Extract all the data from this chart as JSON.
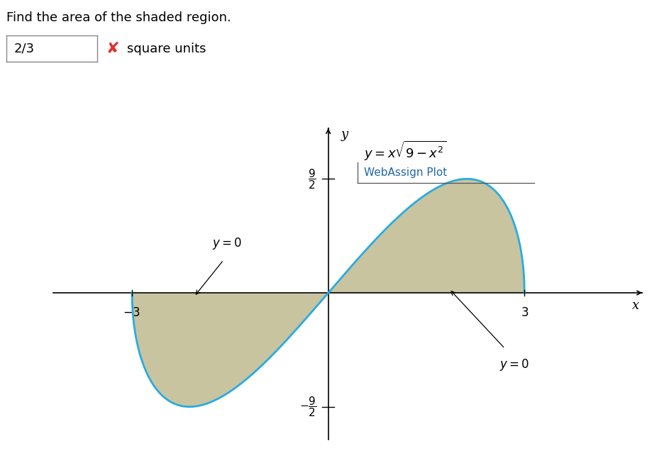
{
  "title_text": "Find the area of the shaded region.",
  "answer_text": "2/3",
  "square_units_text": "square units",
  "equation_label": "$y = x\\sqrt{9 - x^2}$",
  "webassign_label": "WebAssign Plot",
  "y0_label": "$y = 0$",
  "x_min": -4.2,
  "x_max": 4.8,
  "y_min": -5.8,
  "y_max": 6.5,
  "x_tick_neg": -3,
  "x_tick_pos": 3,
  "y_tick_top": 4.5,
  "y_tick_bot": -4.5,
  "curve_color": "#29ABE2",
  "shade_color": "#C8C4A0",
  "shade_alpha": 1.0,
  "curve_linewidth": 2.0,
  "axis_linewidth": 1.2,
  "background_color": "#ffffff",
  "fig_width": 9.43,
  "fig_height": 6.46,
  "dpi": 100
}
